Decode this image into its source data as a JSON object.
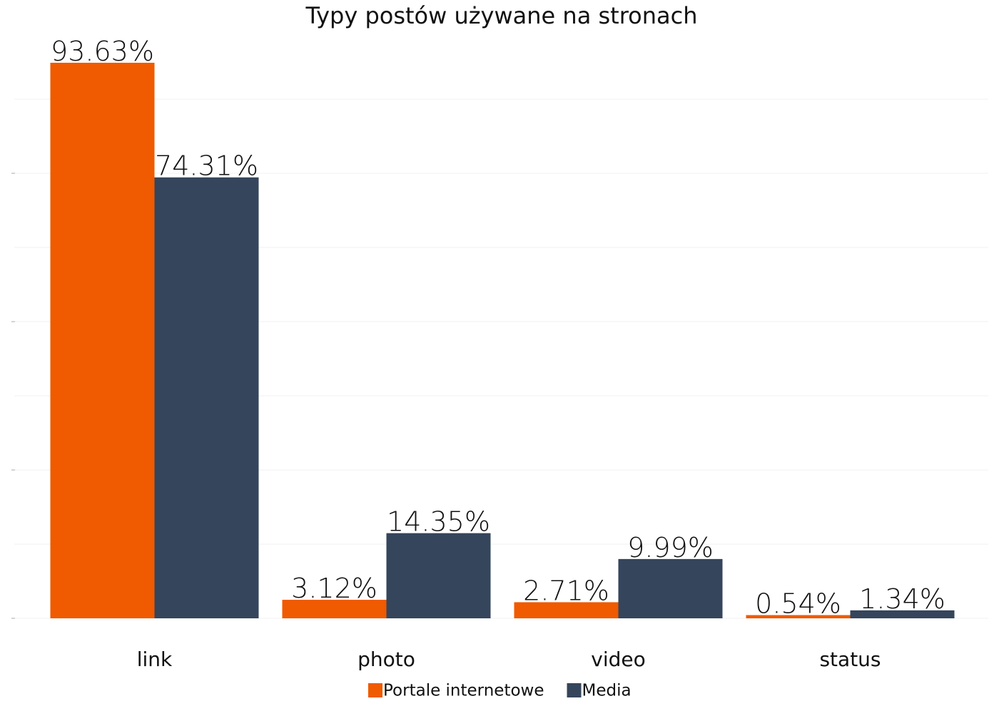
{
  "chart_data": {
    "type": "bar",
    "title": "Typy postów używane na stronach",
    "categories": [
      "link",
      "photo",
      "video",
      "status"
    ],
    "series": [
      {
        "name": "Portale internetowe",
        "color": "#f05a00",
        "values": [
          93.63,
          3.12,
          2.71,
          0.54
        ],
        "value_labels": [
          "93.63%",
          "3.12%",
          "2.71%",
          "0.54%"
        ]
      },
      {
        "name": "Media",
        "color": "#35455b",
        "values": [
          74.31,
          14.35,
          9.99,
          1.34
        ],
        "value_labels": [
          "74.31%",
          "14.35%",
          "9.99%",
          "1.34%"
        ]
      }
    ],
    "ylim": [
      0,
      100
    ],
    "yticks": [
      0,
      25,
      50,
      75
    ],
    "grid_yticks": [
      0,
      12.5,
      25,
      37.5,
      50,
      62.5,
      75,
      87.5
    ],
    "grid": true,
    "legend": "bottom"
  }
}
